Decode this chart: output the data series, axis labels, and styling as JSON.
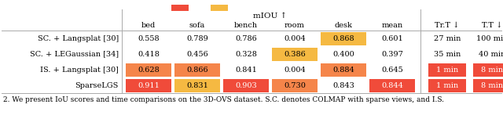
{
  "miou_header": "mIOU ↑",
  "col_headers": [
    "bed",
    "sofa",
    "bench",
    "room",
    "desk",
    "mean"
  ],
  "time_headers": [
    "Tr.T ↓",
    "T.T ↓"
  ],
  "row_labels": [
    "SC. + Langsplat [30]",
    "SC. + LEGaussian [34]",
    "IS. + Langsplat [30]",
    "SparseLGS"
  ],
  "values": [
    [
      0.558,
      0.789,
      0.786,
      0.004,
      0.868,
      0.601
    ],
    [
      0.418,
      0.456,
      0.328,
      0.386,
      0.4,
      0.397
    ],
    [
      0.628,
      0.866,
      0.841,
      0.004,
      0.884,
      0.645
    ],
    [
      0.911,
      0.831,
      0.903,
      0.73,
      0.843,
      0.844
    ]
  ],
  "time_values": [
    [
      "27 min",
      "100 min"
    ],
    [
      "35 min",
      "40 min"
    ],
    [
      "1 min",
      "8 min"
    ],
    [
      "1 min",
      "8 min"
    ]
  ],
  "cell_colors": [
    [
      "none",
      "none",
      "none",
      "none",
      "#f5b942",
      "none"
    ],
    [
      "none",
      "none",
      "none",
      "#f5b942",
      "none",
      "none"
    ],
    [
      "#f5854a",
      "#f5854a",
      "none",
      "none",
      "#f5854a",
      "none"
    ],
    [
      "#f04b3a",
      "#f5b942",
      "#f04b3a",
      "#f5854a",
      "none",
      "#f04b3a"
    ]
  ],
  "time_cell_colors": [
    [
      "none",
      "none"
    ],
    [
      "none",
      "none"
    ],
    [
      "#f04b3a",
      "#f04b3a"
    ],
    [
      "#f04b3a",
      "#f04b3a"
    ]
  ],
  "caption": "2. We present IoU scores and time comparisons on the 3D-OVS dataset. S.C. denotes COLMAP with sparse views, and I.S.",
  "legend_colors": [
    "#f04b3a",
    "#f5b942"
  ],
  "bg_color": "#ffffff",
  "font_size": 7.0,
  "caption_font_size": 6.5
}
